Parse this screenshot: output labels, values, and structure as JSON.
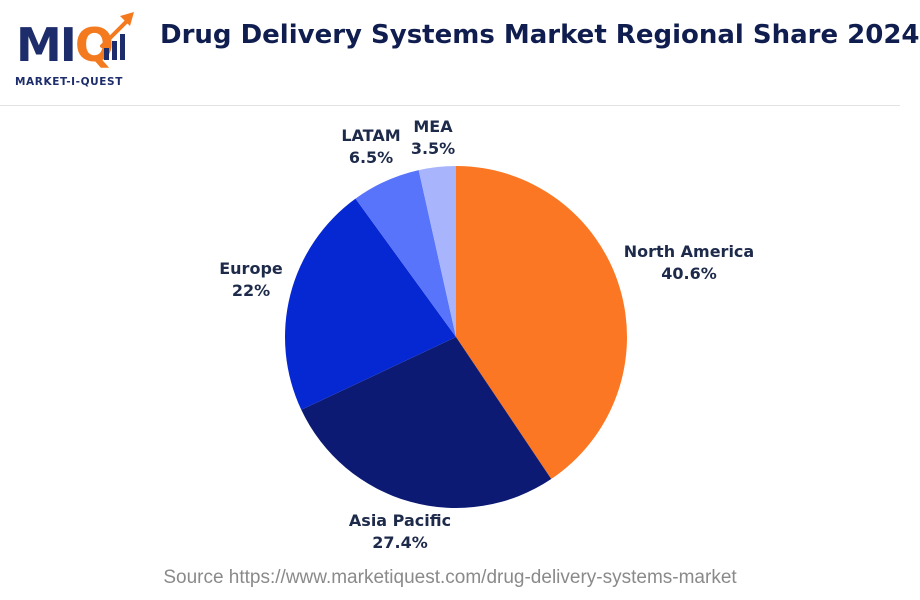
{
  "header": {
    "logo_text_main": "MI",
    "logo_text_accent": "Q",
    "logo_subtitle": "MARKET-I-QUEST",
    "title": "Drug Delivery Systems Market Regional Share 2024"
  },
  "colors": {
    "north_america": "#fb7723",
    "asia_pacific": "#0c1a73",
    "europe": "#0628d2",
    "latam": "#5874fa",
    "mea": "#a8b5fd"
  },
  "chart_data": {
    "type": "pie",
    "title": "Drug Delivery Systems Market Regional Share 2024",
    "unit": "%",
    "slices": [
      {
        "label": "North America",
        "value": 40.6,
        "value_label": "40.6%",
        "color": "#fb7723"
      },
      {
        "label": "Asia Pacific",
        "value": 27.4,
        "value_label": "27.4%",
        "color": "#0c1a73"
      },
      {
        "label": "Europe",
        "value": 22,
        "value_label": "22%",
        "color": "#0628d2"
      },
      {
        "label": "LATAM",
        "value": 6.5,
        "value_label": "6.5%",
        "color": "#5874fa"
      },
      {
        "label": "MEA",
        "value": 3.5,
        "value_label": "3.5%",
        "color": "#a8b5fd"
      }
    ],
    "start": "12 o'clock",
    "direction": "clockwise"
  },
  "footer": {
    "source": "Source https://www.marketiquest.com/drug-delivery-systems-market"
  }
}
